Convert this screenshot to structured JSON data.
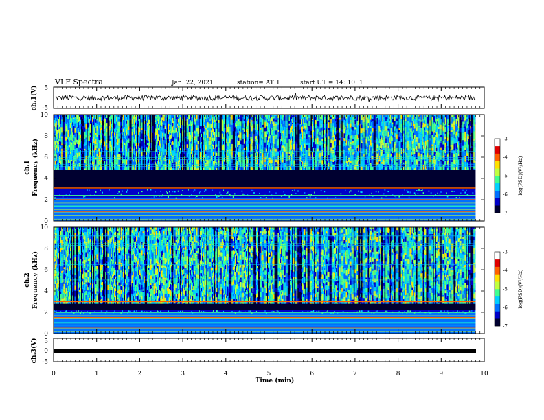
{
  "header": {
    "title": "VLF Spectra",
    "date": "Jan. 22, 2021",
    "station": "station= ATH",
    "start": "start  UT =   14: 10: 1"
  },
  "colors": {
    "spectrogram_scale": [
      "#000030",
      "#0000c8",
      "#0070ff",
      "#00d0ff",
      "#40ff90",
      "#c0ff40",
      "#ffe000",
      "#ff6000",
      "#e00000",
      "#ffffff"
    ],
    "trace": "#000000",
    "background": "#ffffff"
  },
  "chart_data": [
    {
      "type": "line",
      "panel": "ch1-waveform",
      "ylabel": "ch.1(V)",
      "ylim": [
        -5,
        5
      ],
      "yticks": [
        "5",
        "-5"
      ],
      "xlim": [
        0,
        10
      ],
      "series": [
        {
          "description_free": true,
          "level": 0,
          "noise_amplitude": 0.6
        }
      ]
    },
    {
      "type": "heatmap",
      "panel": "ch1-spectrogram",
      "ylabel": "ch.1\nFrequency (kHz)",
      "ylim": [
        0,
        10
      ],
      "yticks": [
        "0",
        "2",
        "4",
        "6",
        "8",
        "10"
      ],
      "xlim": [
        0,
        9.8
      ],
      "colorbar": {
        "label": "log(PSD)(V²/Hz)",
        "range": [
          -7,
          -3
        ],
        "ticks": [
          "-3",
          "-4",
          "-5",
          "-6",
          "-7"
        ]
      },
      "features": {
        "dark_band_khz": [
          3,
          4.8
        ],
        "bright_band_khz": [
          0,
          2.2
        ],
        "tone_lines_khz": [
          0.9,
          1.4,
          2.0,
          2.4,
          3.1
        ]
      }
    },
    {
      "type": "heatmap",
      "panel": "ch2-spectrogram",
      "ylabel": "ch.2\nFrequency (kHz)",
      "ylim": [
        0,
        10
      ],
      "yticks": [
        "0",
        "2",
        "4",
        "6",
        "8",
        "10"
      ],
      "xlim": [
        0,
        9.8
      ],
      "colorbar": {
        "label": "log(PSD)(V²/Hz)",
        "range": [
          -7,
          -3
        ],
        "ticks": [
          "-3",
          "-4",
          "-5",
          "-6",
          "-7"
        ]
      },
      "features": {
        "dark_band_khz": [
          2.2,
          2.8
        ],
        "bright_band_khz": [
          0,
          2.0
        ],
        "tone_lines_khz": [
          0.5,
          1.0,
          1.5,
          2.0,
          3.0
        ]
      }
    },
    {
      "type": "line",
      "panel": "ch3-waveform",
      "ylabel": "ch.3(V)",
      "ylim": [
        -5,
        5
      ],
      "yticks": [
        "5",
        "0",
        "-5"
      ],
      "xlim": [
        0,
        10
      ],
      "series": [
        {
          "level": 0,
          "noise_amplitude": 0
        }
      ]
    }
  ],
  "xaxis": {
    "label": "Time (min)",
    "ticks": [
      "0",
      "1",
      "2",
      "3",
      "4",
      "5",
      "6",
      "7",
      "8",
      "9",
      "10"
    ],
    "range": [
      0,
      10
    ]
  }
}
